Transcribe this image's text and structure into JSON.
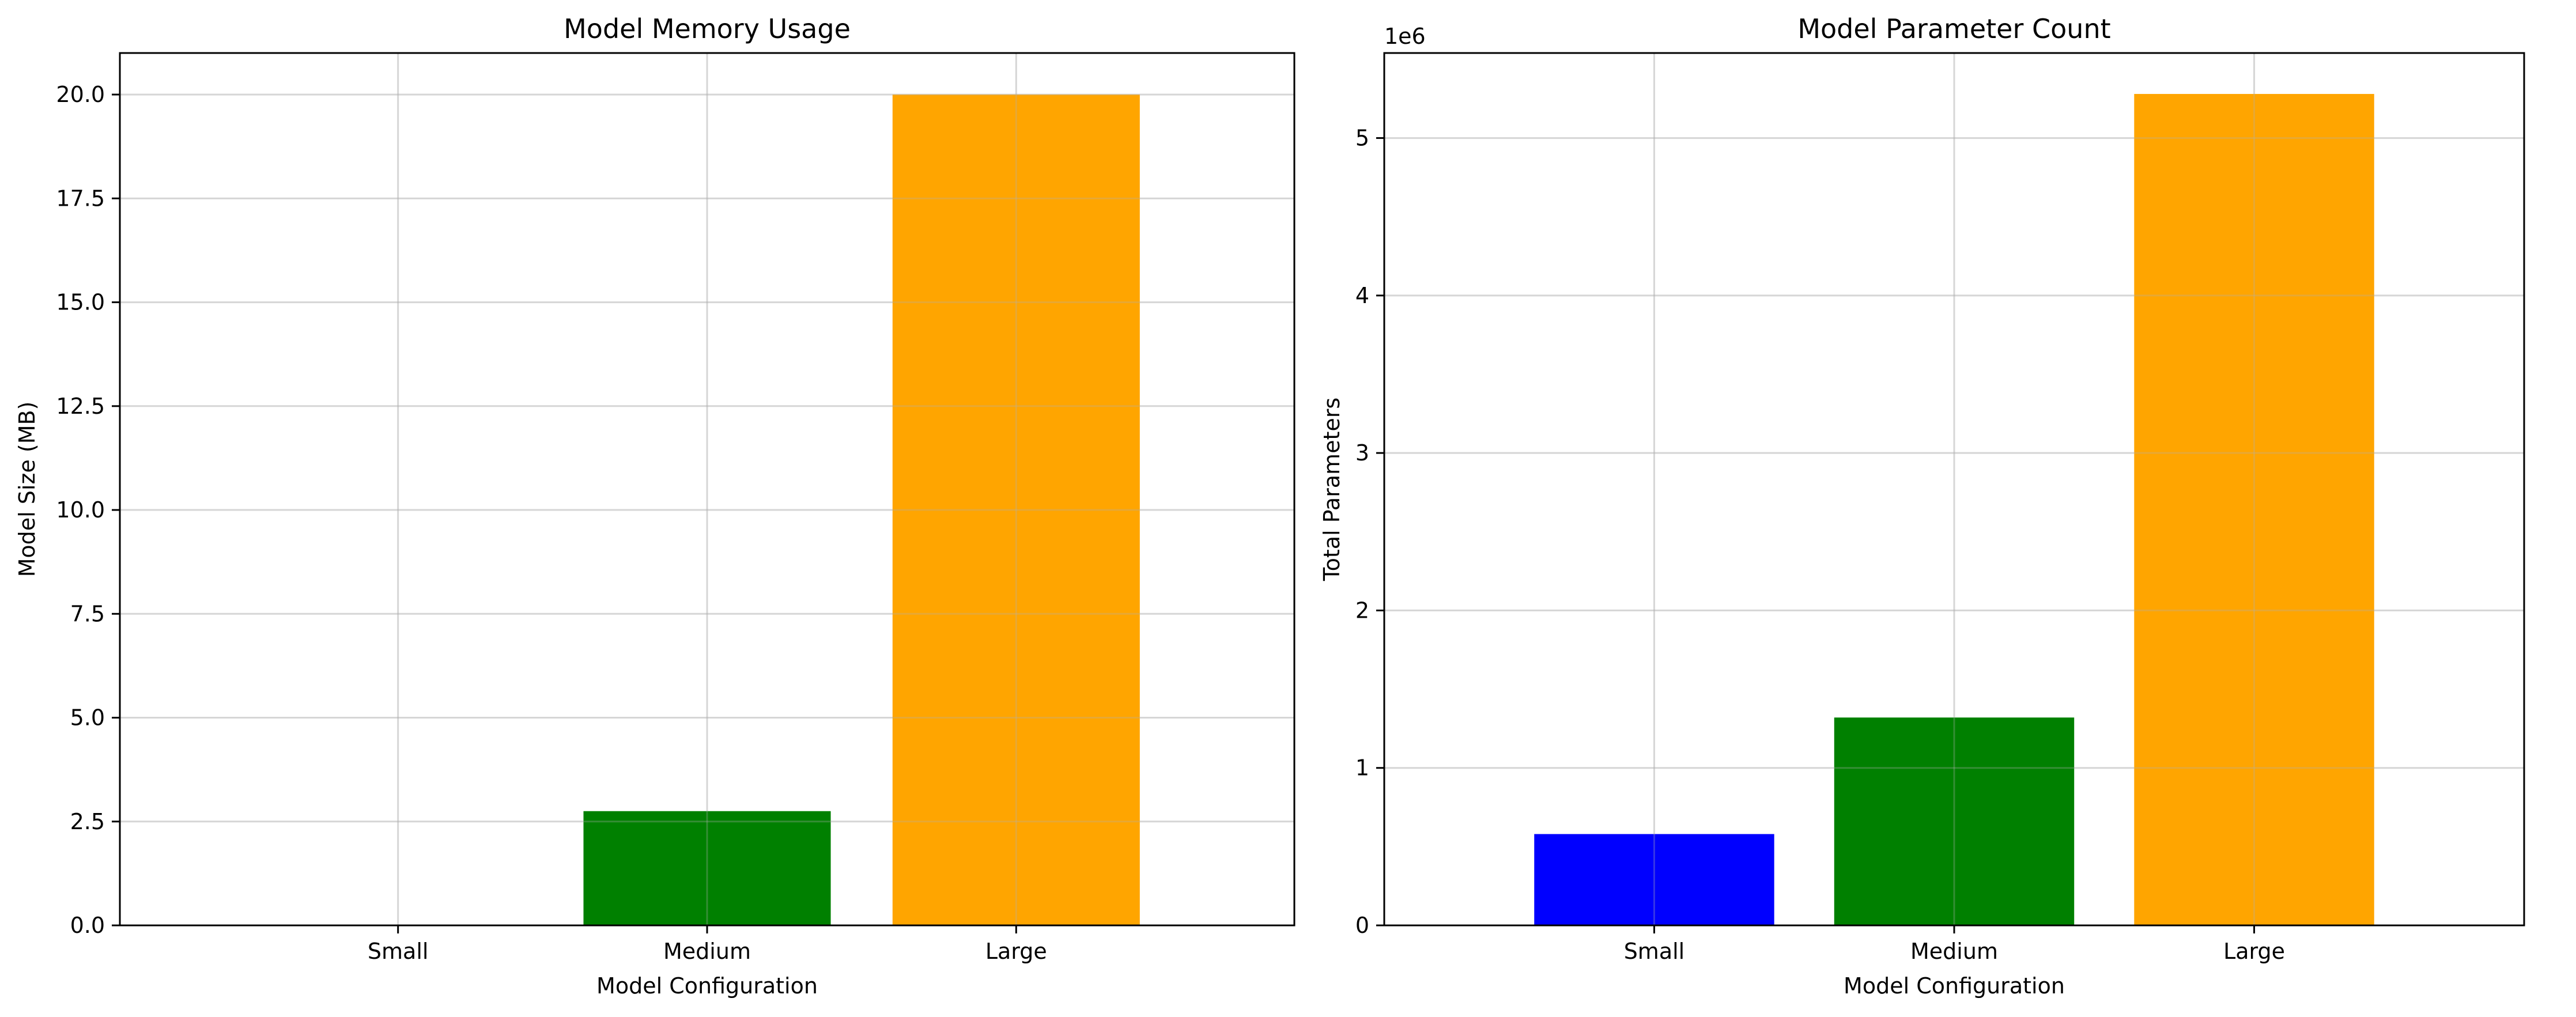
{
  "chart_data": [
    {
      "type": "bar",
      "title": "Model Memory Usage",
      "xlabel": "Model Configuration",
      "ylabel": "Model Size (MB)",
      "categories": [
        "Small",
        "Medium",
        "Large"
      ],
      "values": [
        0,
        2.75,
        20.0
      ],
      "colors": [
        "#0000ff",
        "#008000",
        "#ffa500"
      ],
      "ylim": [
        0,
        21
      ],
      "yticks": [
        0,
        2.5,
        5,
        7.5,
        10,
        12.5,
        15,
        17.5,
        20
      ],
      "ytick_labels": [
        "0.0",
        "2.5",
        "5.0",
        "7.5",
        "10.0",
        "12.5",
        "15.0",
        "17.5",
        "20.0"
      ],
      "grid": true
    },
    {
      "type": "bar",
      "title": "Model Parameter Count",
      "xlabel": "Model Configuration",
      "ylabel": "Total Parameters",
      "offset_label": "1e6",
      "categories": [
        "Small",
        "Medium",
        "Large"
      ],
      "values": [
        580000,
        1320000,
        5280000
      ],
      "colors": [
        "#0000ff",
        "#008000",
        "#ffa500"
      ],
      "ylim": [
        0,
        5540000
      ],
      "yticks": [
        0,
        1000000,
        2000000,
        3000000,
        4000000,
        5000000
      ],
      "ytick_labels": [
        "0",
        "1",
        "2",
        "3",
        "4",
        "5"
      ],
      "grid": true
    }
  ]
}
